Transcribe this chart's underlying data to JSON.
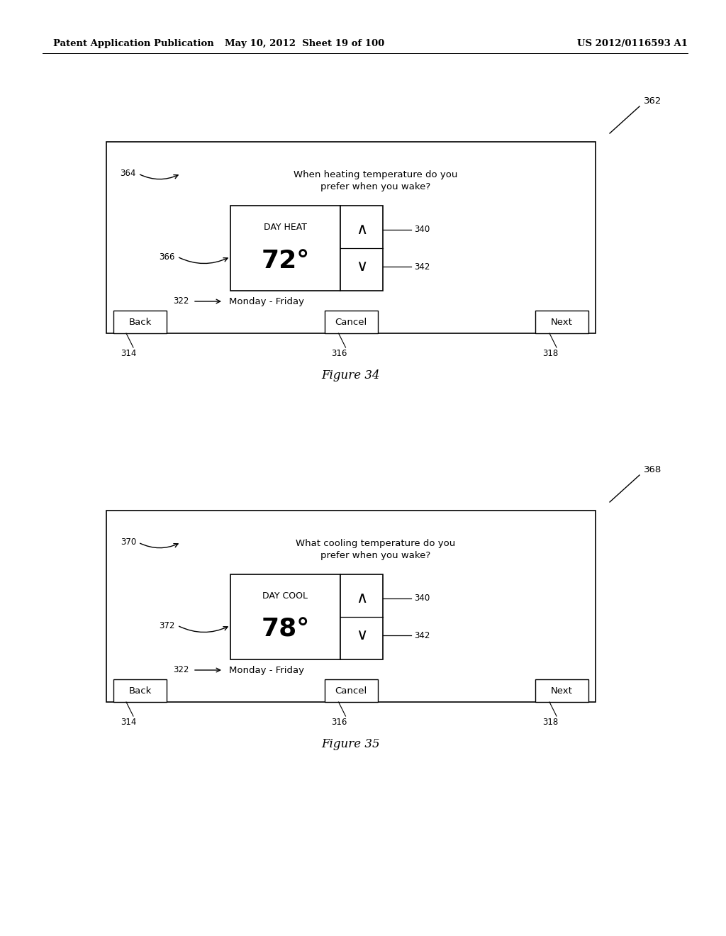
{
  "bg_color": "#ffffff",
  "header_left": "Patent Application Publication",
  "header_mid": "May 10, 2012  Sheet 19 of 100",
  "header_right": "US 2012/0116593 A1",
  "fig34_label": "Figure 34",
  "fig35_label": "Figure 35",
  "fig1": {
    "ref": "362",
    "question_text": "When heating temperature do you\nprefer when you wake?",
    "question_ref": "364",
    "label_ref": "366",
    "mode_label": "DAY HEAT",
    "temp_value": "72°",
    "up_arrow_ref": "340",
    "down_arrow_ref": "342",
    "day_ref": "322",
    "day_text": "Monday - Friday",
    "btn_back": "Back",
    "btn_cancel": "Cancel",
    "btn_next": "Next",
    "btn_back_ref": "314",
    "btn_cancel_ref": "316",
    "btn_next_ref": "318"
  },
  "fig2": {
    "ref": "368",
    "question_text": "What cooling temperature do you\nprefer when you wake?",
    "question_ref": "370",
    "label_ref": "372",
    "mode_label": "DAY COOL",
    "temp_value": "78°",
    "up_arrow_ref": "340",
    "down_arrow_ref": "342",
    "day_ref": "322",
    "day_text": "Monday - Friday",
    "btn_back": "Back",
    "btn_cancel": "Cancel",
    "btn_next": "Next",
    "btn_back_ref": "314",
    "btn_cancel_ref": "316",
    "btn_next_ref": "318"
  }
}
